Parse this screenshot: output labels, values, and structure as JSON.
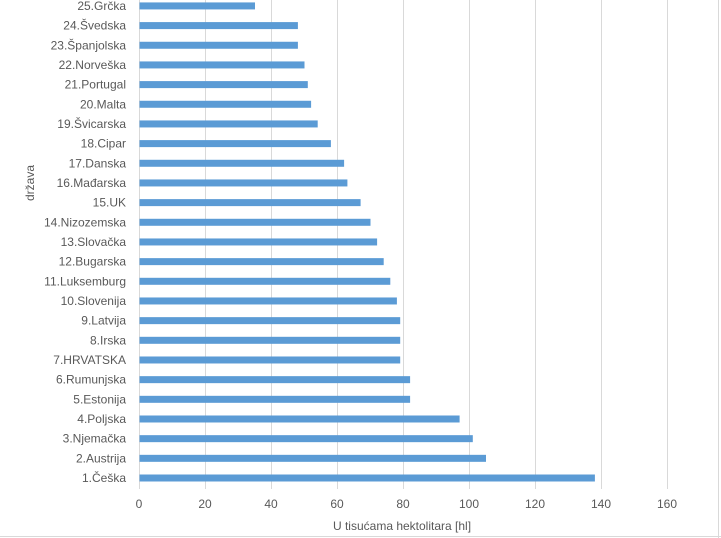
{
  "chart_data": {
    "type": "bar",
    "orientation": "horizontal",
    "title": "",
    "xlabel": "U tisućama hektolitara [hl]",
    "ylabel": "država",
    "xlim": [
      0,
      160
    ],
    "xticks": [
      0,
      20,
      40,
      60,
      80,
      100,
      120,
      140,
      160
    ],
    "grid": "vertical",
    "bar_color": "#5b9bd5",
    "categories": [
      "1.Češka",
      "2.Austrija",
      "3.Njemačka",
      "4.Poljska",
      "5.Estonija",
      "6.Rumunjska",
      "7.HRVATSKA",
      "8.Irska",
      "9.Latvija",
      "10.Slovenija",
      "11.Luksemburg",
      "12.Bugarska",
      "13.Slovačka",
      "14.Nizozemska",
      "15.UK",
      "16.Mađarska",
      "17.Danska",
      "18.Cipar",
      "19.Švicarska",
      "20.Malta",
      "21.Portugal",
      "22.Norveška",
      "23.Španjolska",
      "24.Švedska",
      "25.Grčka"
    ],
    "values": [
      138,
      105,
      101,
      97,
      82,
      82,
      79,
      79,
      79,
      78,
      76,
      74,
      72,
      70,
      67,
      63,
      62,
      58,
      54,
      52,
      51,
      50,
      48,
      48,
      35
    ]
  }
}
